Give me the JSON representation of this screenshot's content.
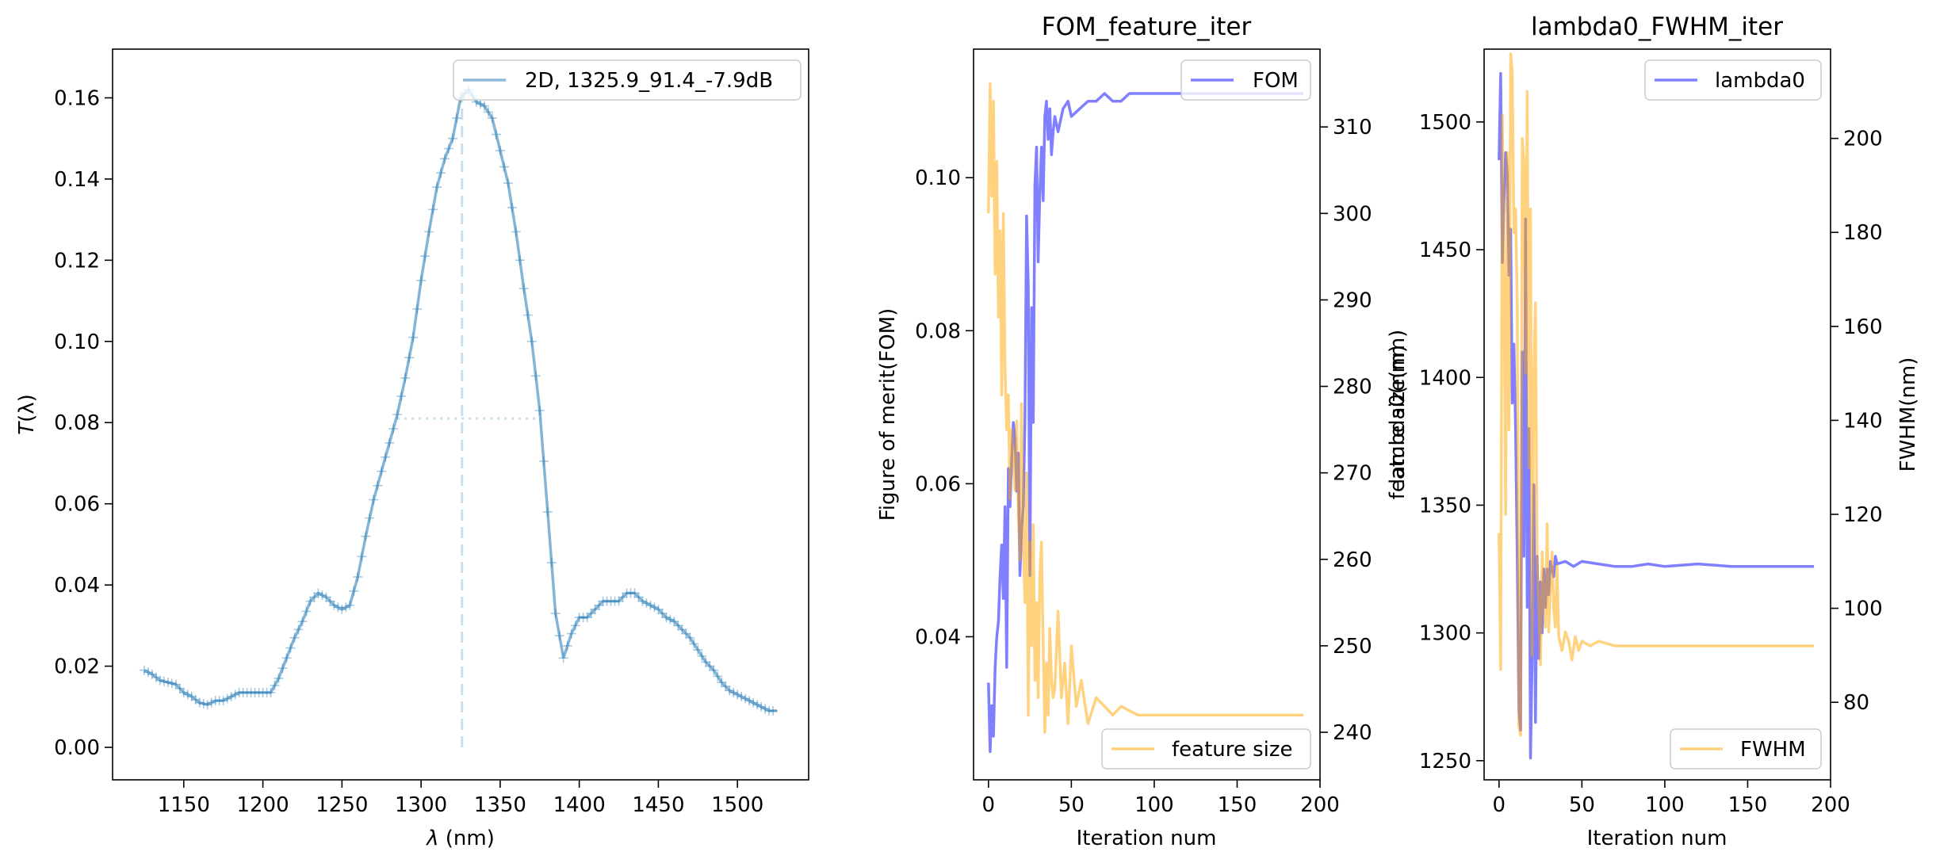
{
  "figure": {
    "colors": {
      "spectrum": "#1f77b4",
      "blue": "#0000ff",
      "orange": "#ffa500"
    }
  },
  "chart_data": [
    {
      "type": "line",
      "title": "",
      "xlabel_var": "λ",
      "xlabel_unit": " (nm)",
      "ylabel_var": "T",
      "ylabel_paren": "(λ)",
      "xlim": [
        1105,
        1545
      ],
      "ylim": [
        -0.008,
        0.172
      ],
      "xticks": [
        1150,
        1200,
        1250,
        1300,
        1350,
        1400,
        1450,
        1500
      ],
      "yticks": [
        0.0,
        0.02,
        0.04,
        0.06,
        0.08,
        0.1,
        0.12,
        0.14,
        0.16
      ],
      "legend": {
        "label": "2D, 1325.9_91.4_-7.9dB",
        "loc": "upper right"
      },
      "peak": {
        "x": 1325.9,
        "y0": 0.0,
        "y1": 0.162
      },
      "half_max": {
        "y": 0.081,
        "x0": 1285,
        "x1": 1376
      },
      "series": [
        {
          "x": [
            1125,
            1130,
            1135,
            1140,
            1145,
            1150,
            1155,
            1160,
            1165,
            1170,
            1175,
            1180,
            1185,
            1190,
            1195,
            1200,
            1205,
            1210,
            1215,
            1220,
            1225,
            1230,
            1235,
            1240,
            1245,
            1250,
            1255,
            1260,
            1265,
            1270,
            1275,
            1280,
            1285,
            1290,
            1295,
            1300,
            1305,
            1310,
            1315,
            1320,
            1325,
            1330,
            1335,
            1340,
            1345,
            1350,
            1355,
            1360,
            1365,
            1370,
            1375,
            1380,
            1385,
            1390,
            1395,
            1400,
            1405,
            1410,
            1415,
            1420,
            1425,
            1430,
            1435,
            1440,
            1445,
            1450,
            1455,
            1460,
            1465,
            1470,
            1475,
            1480,
            1485,
            1490,
            1495,
            1500,
            1505,
            1510,
            1515,
            1520,
            1525
          ],
          "y": [
            0.019,
            0.018,
            0.0165,
            0.016,
            0.0155,
            0.0135,
            0.0125,
            0.011,
            0.0105,
            0.0115,
            0.0115,
            0.0125,
            0.0135,
            0.0135,
            0.0135,
            0.0135,
            0.0135,
            0.017,
            0.022,
            0.027,
            0.031,
            0.036,
            0.038,
            0.037,
            0.035,
            0.034,
            0.035,
            0.042,
            0.052,
            0.061,
            0.068,
            0.075,
            0.082,
            0.091,
            0.101,
            0.115,
            0.127,
            0.138,
            0.145,
            0.15,
            0.16,
            0.162,
            0.159,
            0.158,
            0.155,
            0.147,
            0.139,
            0.127,
            0.113,
            0.1,
            0.083,
            0.058,
            0.033,
            0.022,
            0.028,
            0.032,
            0.032,
            0.034,
            0.036,
            0.036,
            0.036,
            0.038,
            0.038,
            0.036,
            0.035,
            0.034,
            0.032,
            0.031,
            0.029,
            0.027,
            0.024,
            0.021,
            0.019,
            0.016,
            0.014,
            0.013,
            0.012,
            0.011,
            0.01,
            0.009,
            0.009
          ]
        }
      ]
    },
    {
      "type": "line",
      "title": "FOM_feature_iter",
      "xlabel": "Iteration num",
      "ylabel_left": "Figure of merit(FOM)",
      "ylabel_right_a": "feature size(nm)",
      "ylabel_right_b": "lambda0(nm)",
      "xlim": [
        -9,
        200
      ],
      "xticks": [
        0,
        50,
        100,
        150,
        200
      ],
      "ylim_left": [
        0.0213,
        0.1168
      ],
      "yticks_left": [
        0.04,
        0.06,
        0.08,
        0.1
      ],
      "ylim_right": [
        234.5,
        319
      ],
      "yticks_right": [
        240,
        250,
        260,
        270,
        280,
        290,
        300,
        310
      ],
      "legend_left": {
        "label": "FOM",
        "loc": "upper right"
      },
      "legend_right": {
        "label": "feature size",
        "loc": "lower right"
      },
      "series": [
        {
          "name": "FOM",
          "axis": "left",
          "color": "#0000ff",
          "x": [
            0,
            1,
            2,
            3,
            4,
            5,
            6,
            7,
            8,
            9,
            10,
            11,
            12,
            13,
            14,
            15,
            16,
            17,
            18,
            19,
            20,
            21,
            22,
            23,
            24,
            25,
            26,
            27,
            28,
            29,
            30,
            31,
            32,
            33,
            34,
            35,
            36,
            37,
            38,
            39,
            40,
            42,
            45,
            48,
            50,
            55,
            60,
            65,
            70,
            75,
            80,
            85,
            90,
            95,
            100,
            110,
            120,
            130,
            140,
            150,
            160,
            170,
            180,
            190
          ],
          "y": [
            0.034,
            0.025,
            0.031,
            0.027,
            0.036,
            0.04,
            0.042,
            0.048,
            0.052,
            0.045,
            0.057,
            0.036,
            0.062,
            0.057,
            0.063,
            0.068,
            0.066,
            0.059,
            0.064,
            0.048,
            0.054,
            0.057,
            0.068,
            0.095,
            0.086,
            0.048,
            0.083,
            0.068,
            0.099,
            0.104,
            0.089,
            0.098,
            0.104,
            0.097,
            0.108,
            0.11,
            0.105,
            0.109,
            0.103,
            0.106,
            0.108,
            0.106,
            0.109,
            0.11,
            0.108,
            0.109,
            0.11,
            0.11,
            0.111,
            0.11,
            0.11,
            0.111,
            0.111,
            0.111,
            0.111,
            0.111,
            0.111,
            0.111,
            0.111,
            0.111,
            0.111,
            0.111,
            0.111,
            0.111
          ]
        },
        {
          "name": "feature size",
          "axis": "right",
          "color": "#ffa500",
          "x": [
            0,
            1,
            2,
            3,
            4,
            5,
            6,
            7,
            8,
            9,
            10,
            11,
            12,
            13,
            14,
            15,
            16,
            17,
            18,
            19,
            20,
            21,
            22,
            23,
            24,
            25,
            26,
            27,
            28,
            29,
            30,
            31,
            32,
            33,
            34,
            35,
            36,
            37,
            38,
            39,
            40,
            42,
            44,
            46,
            48,
            50,
            53,
            56,
            60,
            65,
            70,
            75,
            80,
            90,
            100,
            120,
            140,
            160,
            180,
            190
          ],
          "y": [
            300,
            315,
            302,
            313,
            293,
            306,
            288,
            298,
            279,
            300,
            282,
            275,
            279,
            267,
            275,
            272,
            268,
            276,
            265,
            260,
            278,
            262,
            255,
            270,
            242,
            262,
            250,
            264,
            246,
            255,
            244,
            258,
            262,
            250,
            240,
            248,
            242,
            252,
            246,
            244,
            245,
            254,
            244,
            248,
            241,
            250,
            243,
            246,
            241,
            244,
            243,
            242,
            243,
            242,
            242,
            242,
            242,
            242,
            242,
            242
          ]
        }
      ]
    },
    {
      "type": "line",
      "title": "lambda0_FWHM_iter",
      "xlabel": "Iteration num",
      "ylabel_right": "FWHM(nm)",
      "xlim": [
        -9,
        200
      ],
      "xticks": [
        0,
        50,
        100,
        150,
        200
      ],
      "ylim_left": [
        1242.5,
        1528.5
      ],
      "yticks_left": [
        1250,
        1300,
        1350,
        1400,
        1450,
        1500
      ],
      "ylim_right": [
        63.5,
        219
      ],
      "yticks_right": [
        80,
        100,
        120,
        140,
        160,
        180,
        200
      ],
      "legend_left": {
        "label": "lambda0",
        "loc": "upper right"
      },
      "legend_right": {
        "label": "FWHM",
        "loc": "lower right"
      },
      "series": [
        {
          "name": "lambda0",
          "axis": "left",
          "color": "#0000ff",
          "x": [
            0,
            1,
            2,
            3,
            4,
            5,
            6,
            7,
            8,
            9,
            10,
            11,
            12,
            13,
            14,
            15,
            16,
            17,
            18,
            19,
            20,
            21,
            22,
            23,
            24,
            25,
            26,
            27,
            28,
            29,
            30,
            31,
            32,
            33,
            34,
            35,
            40,
            45,
            50,
            60,
            70,
            80,
            90,
            100,
            120,
            140,
            160,
            180,
            190
          ],
          "y": [
            1485,
            1519,
            1445,
            1470,
            1488,
            1480,
            1440,
            1458,
            1390,
            1413,
            1380,
            1330,
            1270,
            1262,
            1410,
            1330,
            1462,
            1310,
            1380,
            1251,
            1290,
            1358,
            1265,
            1330,
            1290,
            1320,
            1300,
            1325,
            1310,
            1325,
            1315,
            1328,
            1325,
            1322,
            1330,
            1327,
            1328,
            1326,
            1328,
            1327,
            1326,
            1326,
            1327,
            1326,
            1327,
            1326,
            1326,
            1326,
            1326
          ]
        },
        {
          "name": "FWHM",
          "axis": "right",
          "color": "#ffa500",
          "x": [
            0,
            1,
            2,
            3,
            4,
            5,
            6,
            7,
            8,
            9,
            10,
            11,
            12,
            13,
            14,
            15,
            16,
            17,
            18,
            19,
            20,
            21,
            22,
            23,
            24,
            25,
            26,
            27,
            28,
            29,
            30,
            31,
            32,
            33,
            34,
            35,
            36,
            38,
            40,
            42,
            44,
            46,
            48,
            50,
            55,
            60,
            70,
            80,
            100,
            120,
            140,
            160,
            180,
            190
          ],
          "y": [
            116,
            87,
            205,
            170,
            120,
            197,
            138,
            218,
            214,
            180,
            185,
            165,
            75,
            73,
            200,
            195,
            150,
            210,
            130,
            185,
            90,
            150,
            165,
            110,
            100,
            88,
            112,
            102,
            96,
            118,
            95,
            104,
            112,
            100,
            96,
            109,
            94,
            91,
            95,
            93,
            89,
            94,
            91,
            93,
            92,
            93,
            92,
            92,
            92,
            92,
            92,
            92,
            92,
            92
          ]
        }
      ]
    }
  ]
}
